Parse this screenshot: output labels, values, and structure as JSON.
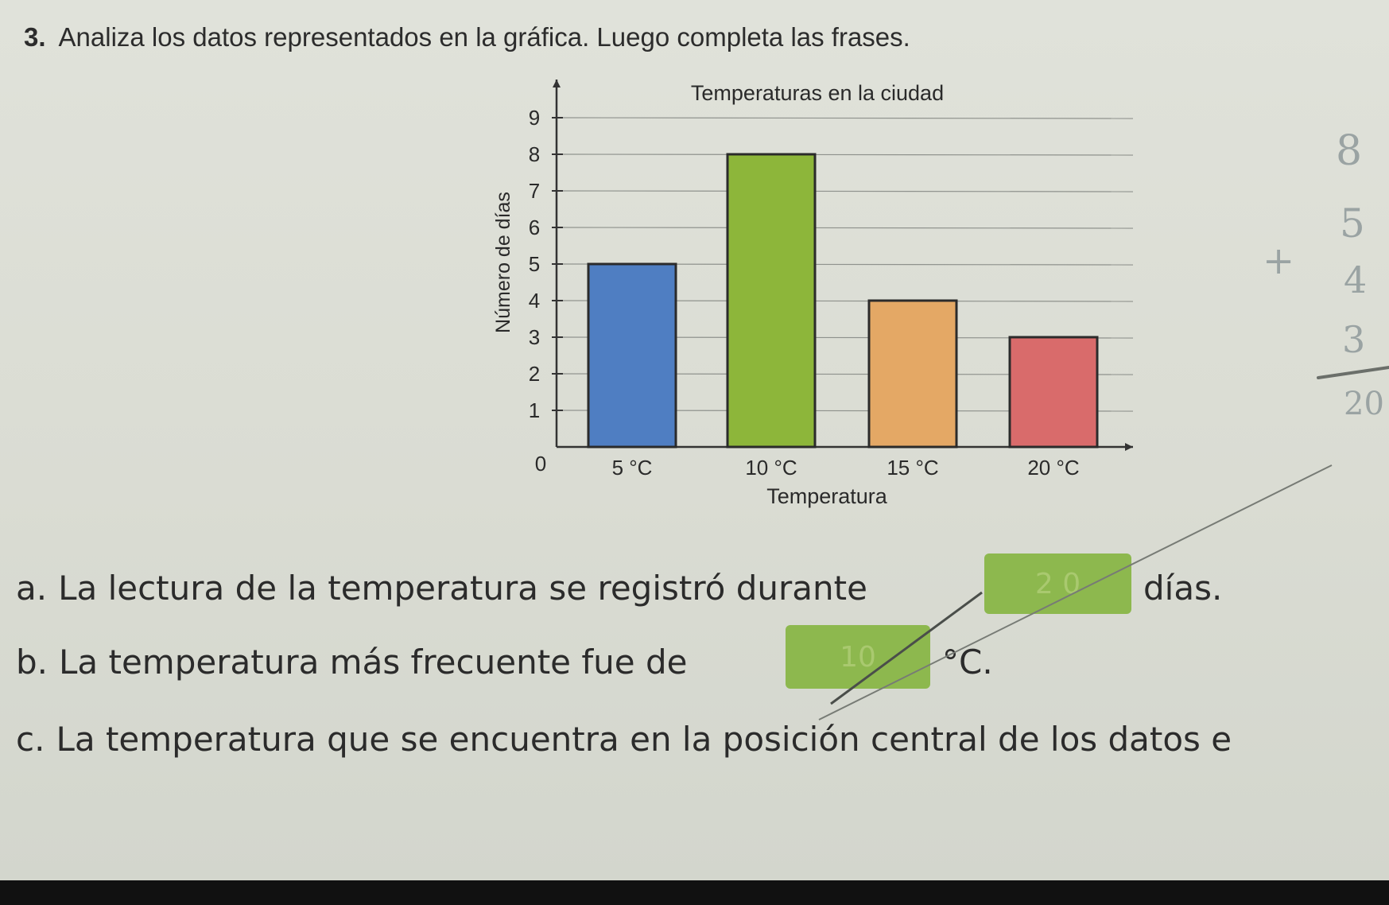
{
  "question": {
    "number": "3.",
    "text": "Analiza los datos representados en la gráfica. Luego completa las frases."
  },
  "chart_data": {
    "type": "bar",
    "title": "Temperaturas en la ciudad",
    "xlabel": "Temperatura",
    "ylabel": "Número de días",
    "categories": [
      "5 °C",
      "10 °C",
      "15 °C",
      "20 °C"
    ],
    "values": [
      5,
      8,
      4,
      3
    ],
    "colors": [
      "#4f7ec2",
      "#8db63a",
      "#e4a865",
      "#d96b6b"
    ],
    "ylim": [
      0,
      9
    ],
    "y_ticks": [
      "0",
      "1",
      "2",
      "3",
      "4",
      "5",
      "6",
      "7",
      "8",
      "9"
    ],
    "grid": true
  },
  "sentences": {
    "a": {
      "letter": "a.",
      "before": "La lectura de la temperatura se registró durante",
      "answer": "2 0",
      "after": "días."
    },
    "b": {
      "letter": "b.",
      "before": "La temperatura más frecuente fue de",
      "answer": "10",
      "after": "°C."
    },
    "c": {
      "letter": "c.",
      "before": "La temperatura que se encuentra en la posición central de los datos e"
    }
  },
  "margin_notes": {
    "sum": [
      "8",
      "5",
      "4",
      "3",
      "20"
    ],
    "plus": "+"
  }
}
